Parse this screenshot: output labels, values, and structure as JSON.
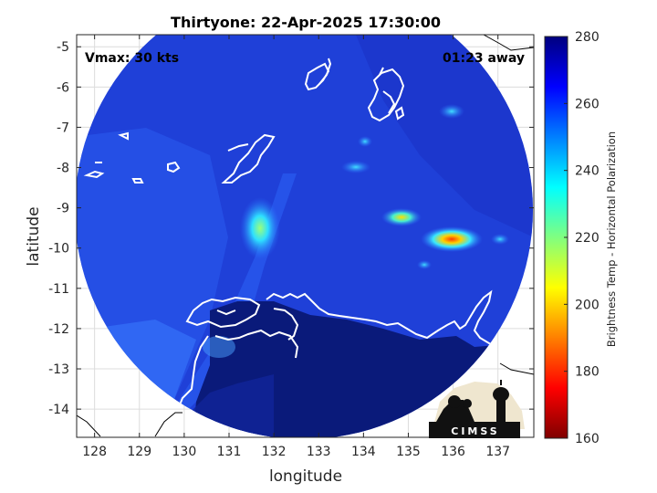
{
  "title": "Thirtyone: 22-Apr-2025 17:30:00",
  "annotations": {
    "vmax": "Vmax: 30 kts",
    "time_away": "01:23 away"
  },
  "axes": {
    "xlabel": "longitude",
    "ylabel": "latitude",
    "xlim": [
      127.6,
      137.8
    ],
    "ylim": [
      -14.7,
      -4.7
    ],
    "xticks": [
      "128",
      "129",
      "130",
      "131",
      "132",
      "133",
      "134",
      "135",
      "136",
      "137"
    ],
    "yticks": [
      "-5",
      "-6",
      "-7",
      "-8",
      "-9",
      "-10",
      "-11",
      "-12",
      "-13",
      "-14"
    ],
    "grid": true
  },
  "colorbar": {
    "label": "Brightness Temp - Horizontal Polarization",
    "min": 160,
    "max": 280,
    "ticks": [
      "280",
      "260",
      "240",
      "220",
      "200",
      "180",
      "160"
    ],
    "colormap": "jet"
  },
  "logo": {
    "text": "CIMSS"
  },
  "colors": {
    "swath_base": "#1f3fd6",
    "swath_dark": "#10209a",
    "land_dark": "#0a1a7a",
    "coastline": "#ffffff",
    "outside_coast": "#000000"
  }
}
